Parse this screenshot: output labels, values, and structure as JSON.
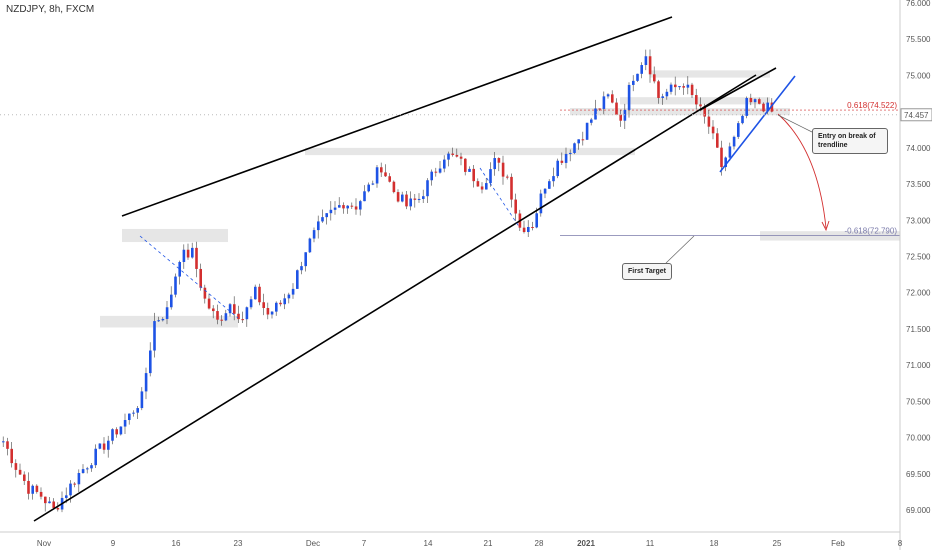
{
  "symbol_title": "NZDJPY, 8h, FXCM",
  "colors": {
    "up": "#1e53e5",
    "down": "#d32f2f",
    "wedge": "#000000",
    "blue_trend": "#1e53e5",
    "zone": "#e0e0e0",
    "fib_upper": "#d32f2f",
    "fib_lower": "#7a7aaa"
  },
  "chart_data": {
    "type": "candlestick",
    "y_axis": {
      "min": 68.75,
      "max": 76.0,
      "ticks": [
        "76.000",
        "75.500",
        "75.000",
        "74.500",
        "74.000",
        "73.500",
        "73.000",
        "72.500",
        "72.000",
        "71.500",
        "71.000",
        "70.500",
        "70.000",
        "69.500",
        "69.000"
      ]
    },
    "x_axis": {
      "ticks": [
        "Nov",
        "9",
        "16",
        "23",
        "Dec",
        "7",
        "14",
        "21",
        "28",
        "2021",
        "11",
        "18",
        "25",
        "Feb",
        "8"
      ]
    },
    "last_price": "74.457",
    "fib_levels": [
      {
        "label": "0.618(74.522)",
        "value": 74.522
      },
      {
        "label": "-0.618(72.790)",
        "value": 72.79
      }
    ],
    "annotations": [
      {
        "text": "Entry on break of trendline"
      },
      {
        "text": "First Target"
      }
    ],
    "close_path": [
      [
        0,
        69.95
      ],
      [
        3,
        69.6
      ],
      [
        6,
        69.3
      ],
      [
        9,
        69.2
      ],
      [
        12,
        69.0
      ],
      [
        15,
        69.25
      ],
      [
        18,
        69.5
      ],
      [
        21,
        69.7
      ],
      [
        24,
        69.9
      ],
      [
        27,
        70.1
      ],
      [
        30,
        70.3
      ],
      [
        33,
        70.55
      ],
      [
        36,
        71.6
      ],
      [
        39,
        71.75
      ],
      [
        42,
        72.5
      ],
      [
        45,
        72.55
      ],
      [
        48,
        71.9
      ],
      [
        51,
        71.6
      ],
      [
        54,
        71.85
      ],
      [
        57,
        71.65
      ],
      [
        60,
        72.0
      ],
      [
        63,
        71.7
      ],
      [
        66,
        71.85
      ],
      [
        69,
        72.1
      ],
      [
        72,
        72.6
      ],
      [
        75,
        72.9
      ],
      [
        78,
        73.1
      ],
      [
        81,
        73.25
      ],
      [
        84,
        73.2
      ],
      [
        87,
        73.45
      ],
      [
        90,
        73.75
      ],
      [
        93,
        73.4
      ],
      [
        96,
        73.2
      ],
      [
        99,
        73.3
      ],
      [
        102,
        73.6
      ],
      [
        105,
        73.9
      ],
      [
        108,
        73.85
      ],
      [
        111,
        73.65
      ],
      [
        114,
        73.5
      ],
      [
        117,
        73.8
      ],
      [
        120,
        73.6
      ],
      [
        123,
        72.9
      ],
      [
        126,
        72.95
      ],
      [
        129,
        73.5
      ],
      [
        132,
        73.8
      ],
      [
        135,
        74.0
      ],
      [
        138,
        74.2
      ],
      [
        141,
        74.5
      ],
      [
        144,
        74.7
      ],
      [
        147,
        74.4
      ],
      [
        150,
        75.0
      ],
      [
        153,
        75.3
      ],
      [
        156,
        74.7
      ],
      [
        159,
        74.8
      ],
      [
        162,
        74.9
      ],
      [
        165,
        74.6
      ],
      [
        168,
        74.3
      ],
      [
        171,
        73.75
      ],
      [
        174,
        74.1
      ],
      [
        177,
        74.6
      ],
      [
        180,
        74.62
      ],
      [
        183,
        74.5
      ]
    ]
  }
}
